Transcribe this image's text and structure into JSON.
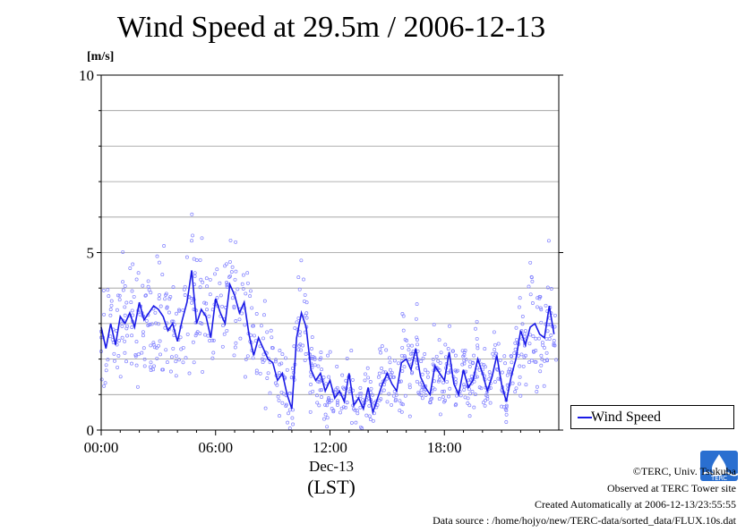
{
  "colors": {
    "series": "#1a1ae6",
    "points": "#8080ff",
    "grid": "#999999",
    "logo": "#2a6fd0"
  },
  "icons": {
    "logo": "terc-logo-icon"
  },
  "chart_data": {
    "type": "line",
    "title": "Wind Speed at 29.5m / 2006-12-13",
    "ylabel": "[m/s]",
    "xlabel": "(LST)",
    "x_sublabel": "Dec-13",
    "ylim": [
      0,
      10
    ],
    "xlim": [
      "00:00",
      "24:00"
    ],
    "y_ticks": [
      "0",
      "5",
      "10"
    ],
    "x_ticks": [
      "00:00",
      "06:00",
      "12:00",
      "18:00"
    ],
    "grid": true,
    "legend_position": "right-bottom",
    "series": [
      {
        "name": "Wind Speed",
        "x_hours": [
          0,
          0.25,
          0.5,
          0.75,
          1,
          1.25,
          1.5,
          1.75,
          2,
          2.25,
          2.5,
          2.75,
          3,
          3.25,
          3.5,
          3.75,
          4,
          4.25,
          4.5,
          4.75,
          5,
          5.25,
          5.5,
          5.75,
          6,
          6.25,
          6.5,
          6.75,
          7,
          7.25,
          7.5,
          7.75,
          8,
          8.25,
          8.5,
          8.75,
          9,
          9.25,
          9.5,
          9.75,
          10,
          10.25,
          10.5,
          10.75,
          11,
          11.25,
          11.5,
          11.75,
          12,
          12.25,
          12.5,
          12.75,
          13,
          13.25,
          13.5,
          13.75,
          14,
          14.25,
          14.5,
          14.75,
          15,
          15.25,
          15.5,
          15.75,
          16,
          16.25,
          16.5,
          16.75,
          17,
          17.25,
          17.5,
          17.75,
          18,
          18.25,
          18.5,
          18.75,
          19,
          19.25,
          19.5,
          19.75,
          20,
          20.25,
          20.5,
          20.75,
          21,
          21.25,
          21.5,
          21.75,
          22,
          22.25,
          22.5,
          22.75,
          23,
          23.25,
          23.5,
          23.75
        ],
        "values": [
          2.9,
          2.3,
          3.0,
          2.4,
          3.2,
          3.0,
          3.3,
          2.9,
          3.6,
          3.1,
          3.3,
          3.5,
          3.4,
          3.2,
          2.8,
          3.0,
          2.5,
          3.1,
          3.6,
          4.5,
          3.0,
          3.4,
          3.2,
          2.6,
          3.7,
          3.3,
          3.0,
          4.1,
          3.8,
          3.3,
          3.6,
          2.7,
          2.1,
          2.6,
          2.3,
          2.0,
          1.9,
          1.4,
          1.6,
          1.0,
          0.6,
          2.6,
          3.3,
          2.9,
          1.7,
          1.4,
          1.6,
          1.1,
          1.4,
          0.9,
          1.1,
          0.8,
          1.6,
          0.7,
          0.9,
          0.6,
          1.2,
          0.5,
          0.9,
          1.3,
          1.6,
          1.3,
          1.1,
          1.9,
          2.0,
          1.7,
          2.3,
          1.5,
          1.2,
          1.0,
          1.8,
          1.6,
          1.4,
          2.2,
          1.3,
          1.0,
          1.7,
          1.2,
          1.4,
          2.0,
          1.6,
          1.1,
          1.5,
          2.1,
          1.3,
          0.8,
          1.5,
          2.0,
          2.8,
          2.4,
          2.9,
          3.0,
          2.7,
          2.6,
          3.5,
          2.7
        ]
      }
    ]
  },
  "legend": {
    "label": "Wind Speed"
  },
  "credits": {
    "line1": "©TERC, Univ. Tsukuba",
    "line2": "Observed at TERC Tower site",
    "line3": "Created Automatically at 2006-12-13/23:55:55",
    "line4": "Data source : /home/hojyo/new/TERC-data/sorted_data/FLUX.10s.dat"
  }
}
